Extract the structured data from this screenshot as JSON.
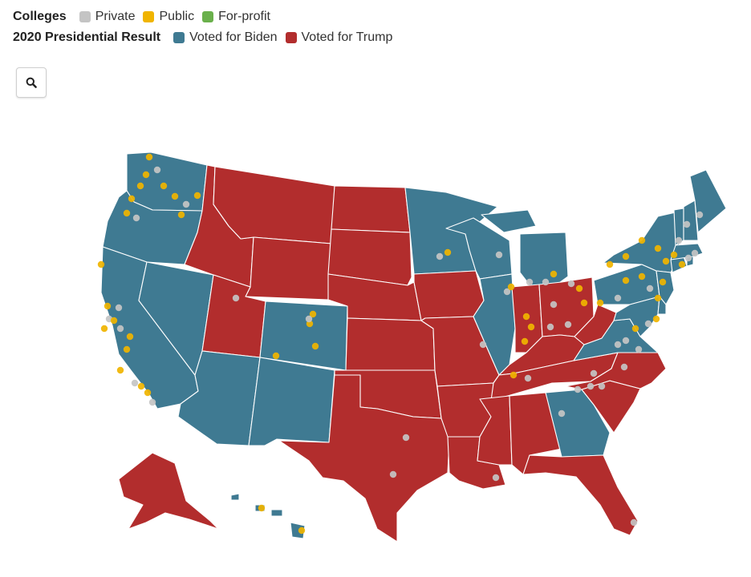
{
  "legend": {
    "colleges_title": "Colleges",
    "college_types": [
      {
        "label": "Private",
        "color": "#c4c4c4"
      },
      {
        "label": "Public",
        "color": "#f0b400"
      },
      {
        "label": "For-profit",
        "color": "#6ab04c"
      }
    ],
    "result_title": "2020 Presidential Result",
    "results": [
      {
        "label": "Voted for Biden",
        "color": "#3f7a92"
      },
      {
        "label": "Voted for Trump",
        "color": "#b22d2d"
      }
    ]
  },
  "search": {
    "icon": "search-icon"
  },
  "map": {
    "region": "United States",
    "states": [
      {
        "name": "Washington",
        "result": "Biden"
      },
      {
        "name": "Oregon",
        "result": "Biden"
      },
      {
        "name": "California",
        "result": "Biden"
      },
      {
        "name": "Nevada",
        "result": "Biden"
      },
      {
        "name": "Idaho",
        "result": "Trump"
      },
      {
        "name": "Montana",
        "result": "Trump"
      },
      {
        "name": "Wyoming",
        "result": "Trump"
      },
      {
        "name": "Utah",
        "result": "Trump"
      },
      {
        "name": "Arizona",
        "result": "Biden"
      },
      {
        "name": "Colorado",
        "result": "Biden"
      },
      {
        "name": "New Mexico",
        "result": "Biden"
      },
      {
        "name": "North Dakota",
        "result": "Trump"
      },
      {
        "name": "South Dakota",
        "result": "Trump"
      },
      {
        "name": "Nebraska",
        "result": "Trump"
      },
      {
        "name": "Kansas",
        "result": "Trump"
      },
      {
        "name": "Oklahoma",
        "result": "Trump"
      },
      {
        "name": "Texas",
        "result": "Trump"
      },
      {
        "name": "Minnesota",
        "result": "Biden"
      },
      {
        "name": "Iowa",
        "result": "Trump"
      },
      {
        "name": "Missouri",
        "result": "Trump"
      },
      {
        "name": "Arkansas",
        "result": "Trump"
      },
      {
        "name": "Louisiana",
        "result": "Trump"
      },
      {
        "name": "Wisconsin",
        "result": "Biden"
      },
      {
        "name": "Illinois",
        "result": "Biden"
      },
      {
        "name": "Michigan",
        "result": "Biden"
      },
      {
        "name": "Indiana",
        "result": "Trump"
      },
      {
        "name": "Ohio",
        "result": "Trump"
      },
      {
        "name": "Kentucky",
        "result": "Trump"
      },
      {
        "name": "Tennessee",
        "result": "Trump"
      },
      {
        "name": "Mississippi",
        "result": "Trump"
      },
      {
        "name": "Alabama",
        "result": "Trump"
      },
      {
        "name": "Georgia",
        "result": "Biden"
      },
      {
        "name": "Florida",
        "result": "Trump"
      },
      {
        "name": "South Carolina",
        "result": "Trump"
      },
      {
        "name": "North Carolina",
        "result": "Trump"
      },
      {
        "name": "Virginia",
        "result": "Biden"
      },
      {
        "name": "West Virginia",
        "result": "Trump"
      },
      {
        "name": "Pennsylvania",
        "result": "Biden"
      },
      {
        "name": "New York",
        "result": "Biden"
      },
      {
        "name": "Maryland",
        "result": "Biden"
      },
      {
        "name": "Delaware",
        "result": "Biden"
      },
      {
        "name": "New Jersey",
        "result": "Biden"
      },
      {
        "name": "Connecticut",
        "result": "Biden"
      },
      {
        "name": "Rhode Island",
        "result": "Biden"
      },
      {
        "name": "Massachusetts",
        "result": "Biden"
      },
      {
        "name": "Vermont",
        "result": "Biden"
      },
      {
        "name": "New Hampshire",
        "result": "Biden"
      },
      {
        "name": "Maine",
        "result": "Biden"
      },
      {
        "name": "Alaska",
        "result": "Trump"
      },
      {
        "name": "Hawaii",
        "result": "Biden"
      }
    ]
  }
}
